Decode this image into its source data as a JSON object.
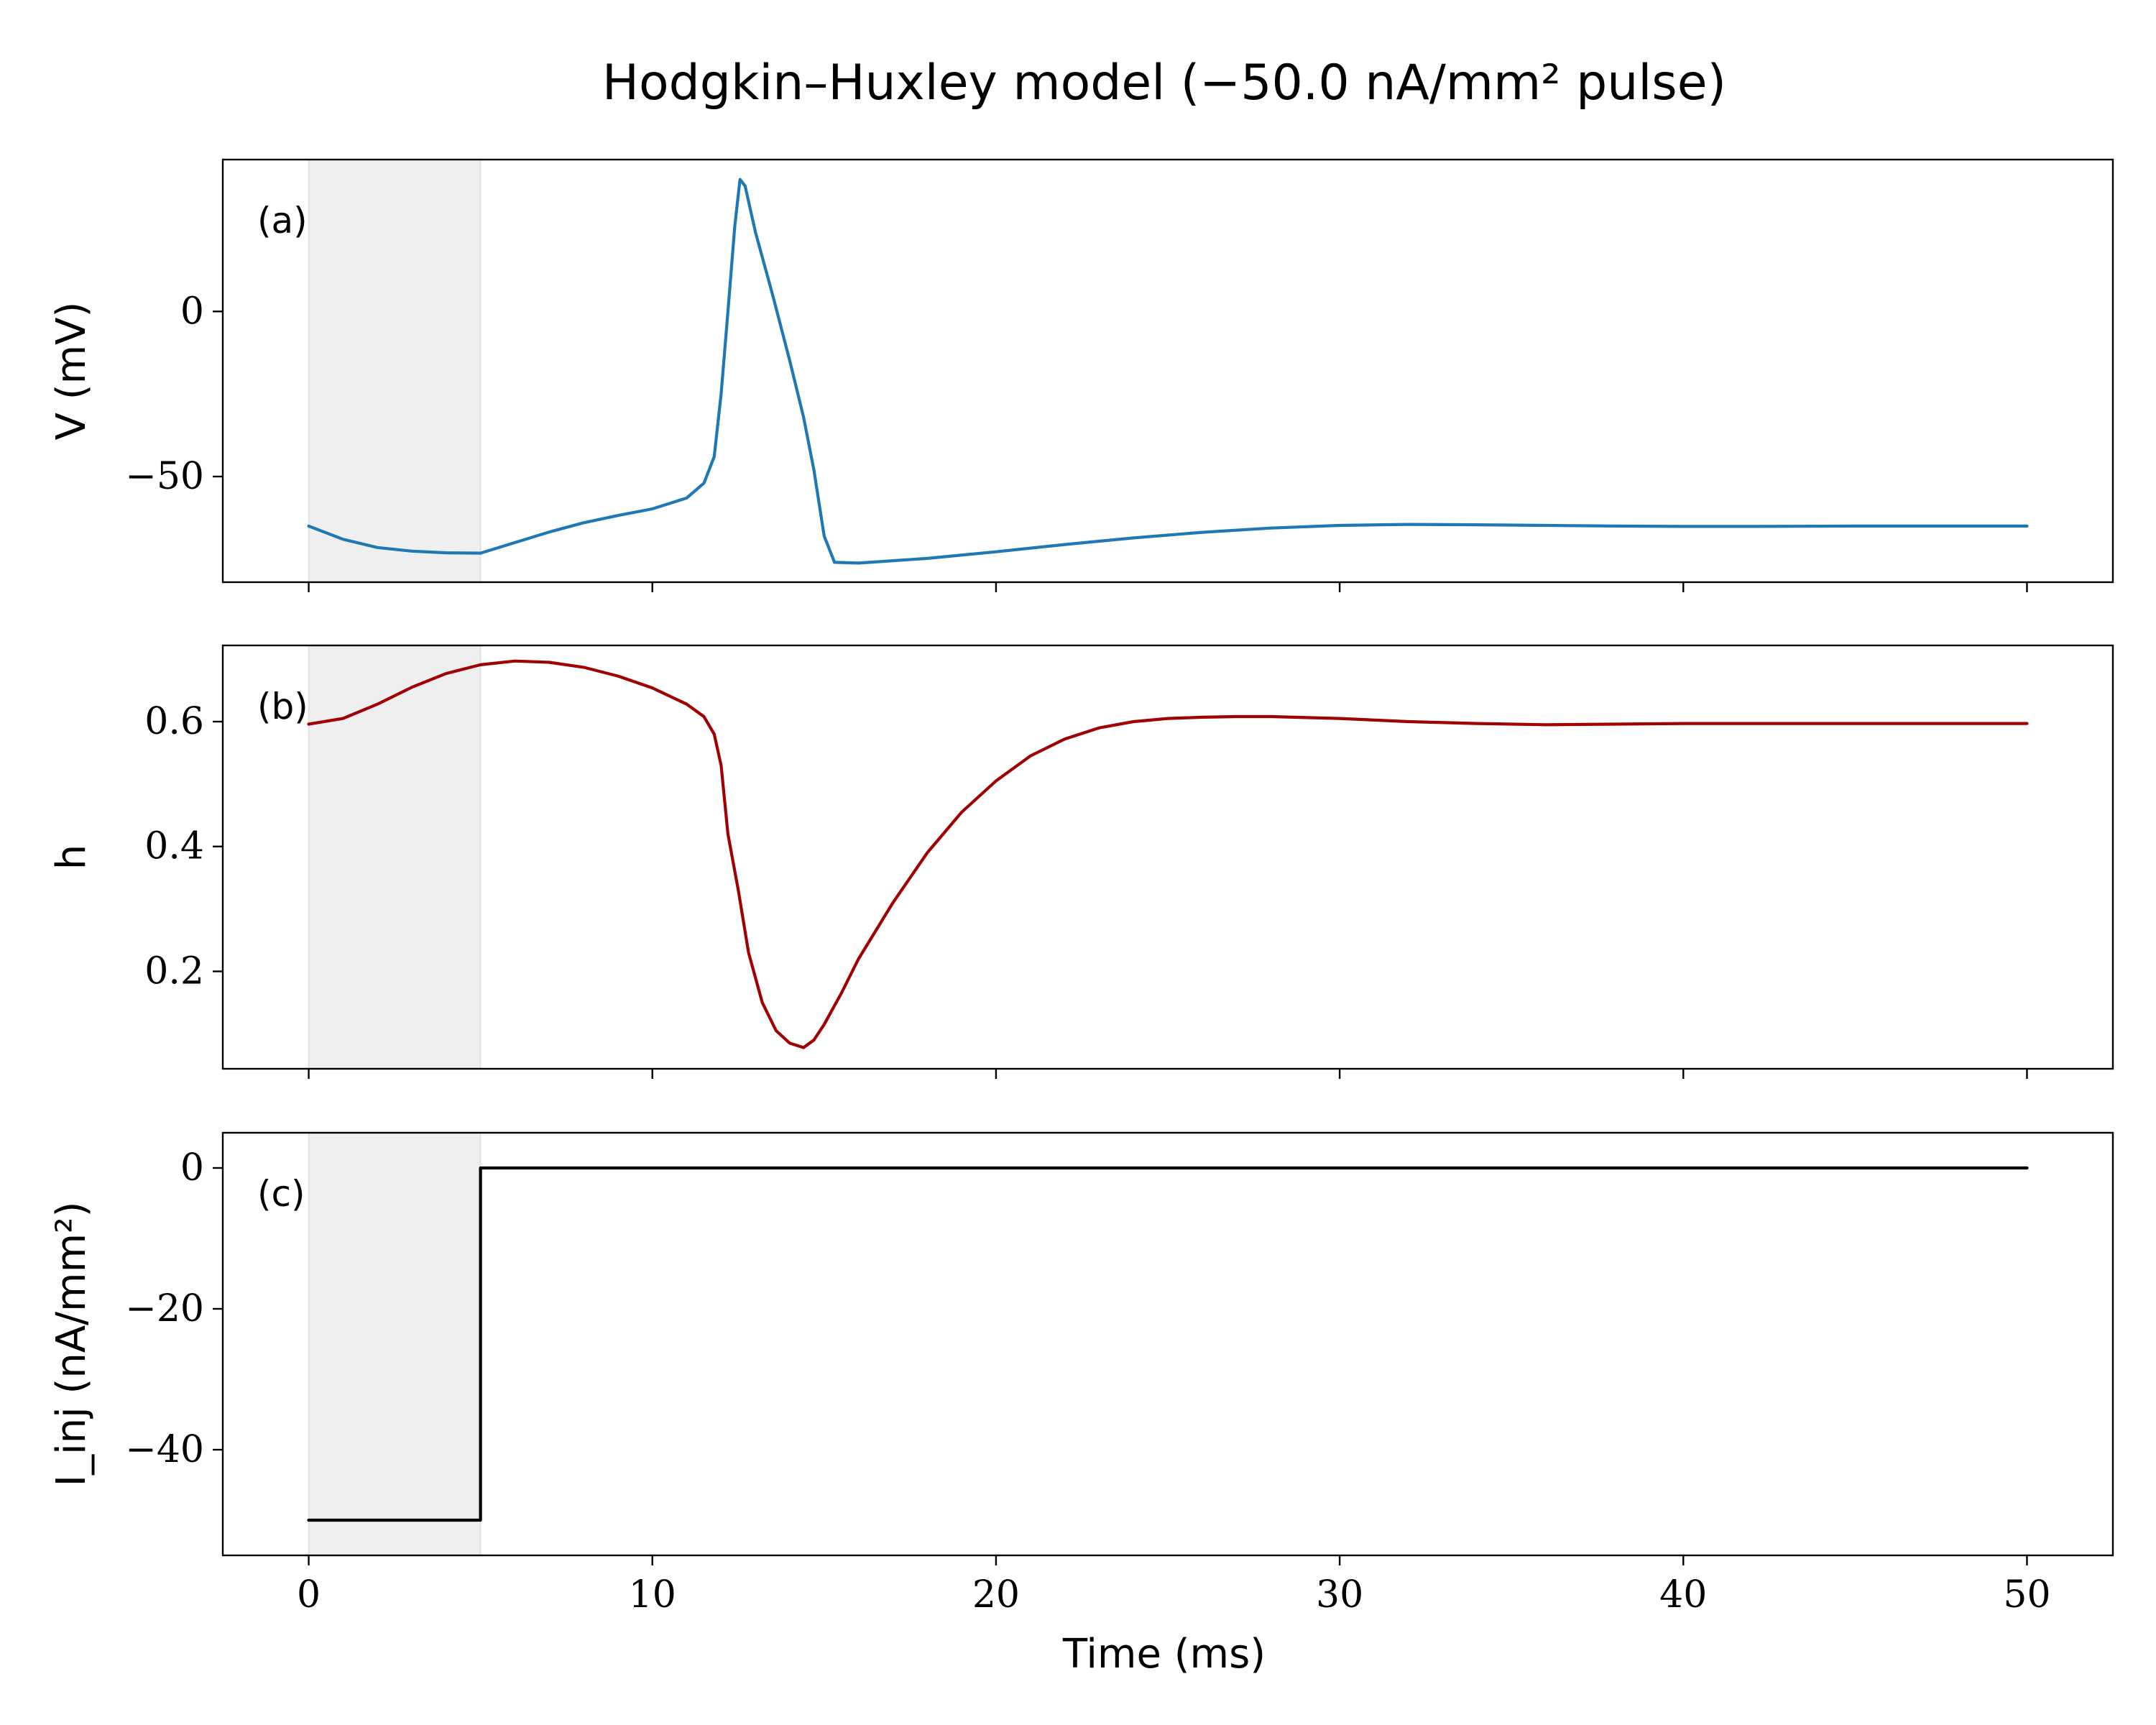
{
  "figure": {
    "title": "Hodgkin–Huxley model (−50.0 nA/mm² pulse)",
    "xlabel": "Time (ms)"
  },
  "chart_data": [
    {
      "type": "line",
      "panel_label": "(a)",
      "ylabel": "V (mV)",
      "xlim": [
        -2.5,
        52.5
      ],
      "ylim": [
        -82,
        46
      ],
      "xticks": [
        0,
        10,
        20,
        30,
        40,
        50
      ],
      "xticklabels": [
        "",
        "",
        "",
        "",
        "",
        ""
      ],
      "yticks": [
        0,
        -50
      ],
      "yticklabels": [
        "0",
        "−50"
      ],
      "shaded_interval": [
        0,
        5
      ],
      "color": "#1f77b4",
      "x": [
        0,
        1,
        2,
        3,
        4,
        5,
        6,
        7,
        8,
        9,
        10,
        11,
        11.5,
        11.8,
        12.0,
        12.2,
        12.4,
        12.55,
        12.7,
        13.0,
        13.5,
        14.0,
        14.4,
        14.7,
        15.0,
        15.3,
        16,
        17,
        18,
        20,
        22,
        24,
        26,
        28,
        30,
        32,
        34,
        36,
        38,
        40,
        42,
        45,
        50
      ],
      "y": [
        -65.0,
        -69.0,
        -71.5,
        -72.6,
        -73.1,
        -73.2,
        -70.0,
        -66.8,
        -64.0,
        -61.8,
        -59.8,
        -56.5,
        -52.0,
        -44.0,
        -25.0,
        0.0,
        26.0,
        40.0,
        38.0,
        24.0,
        5.0,
        -15.0,
        -32.0,
        -48.0,
        -68.0,
        -76.0,
        -76.2,
        -75.5,
        -74.8,
        -72.8,
        -70.6,
        -68.6,
        -66.9,
        -65.6,
        -64.8,
        -64.5,
        -64.6,
        -64.8,
        -65.0,
        -65.1,
        -65.1,
        -65.0,
        -65.0
      ]
    },
    {
      "type": "line",
      "panel_label": "(b)",
      "ylabel": "h",
      "xlim": [
        -2.5,
        52.5
      ],
      "ylim": [
        0.044,
        0.722
      ],
      "xticks": [
        0,
        10,
        20,
        30,
        40,
        50
      ],
      "xticklabels": [
        "",
        "",
        "",
        "",
        "",
        ""
      ],
      "yticks": [
        0.6,
        0.4,
        0.2
      ],
      "yticklabels": [
        "0.6",
        "0.4",
        "0.2"
      ],
      "shaded_interval": [
        0,
        5
      ],
      "color": "#a00000",
      "x": [
        0,
        1,
        2,
        3,
        4,
        5,
        6,
        7,
        8,
        9,
        10,
        11,
        11.5,
        11.8,
        12.0,
        12.2,
        12.5,
        12.8,
        13.2,
        13.6,
        14.0,
        14.4,
        14.7,
        15.0,
        15.5,
        16,
        17,
        18,
        19,
        20,
        21,
        22,
        23,
        24,
        25,
        26,
        27,
        28,
        30,
        32,
        34,
        36,
        38,
        40,
        45,
        50
      ],
      "y": [
        0.596,
        0.605,
        0.628,
        0.655,
        0.677,
        0.691,
        0.697,
        0.695,
        0.687,
        0.673,
        0.654,
        0.628,
        0.608,
        0.58,
        0.53,
        0.42,
        0.33,
        0.23,
        0.15,
        0.105,
        0.085,
        0.078,
        0.09,
        0.115,
        0.165,
        0.22,
        0.31,
        0.39,
        0.455,
        0.505,
        0.545,
        0.572,
        0.59,
        0.6,
        0.605,
        0.607,
        0.608,
        0.608,
        0.605,
        0.6,
        0.597,
        0.595,
        0.596,
        0.597,
        0.597,
        0.597
      ]
    },
    {
      "type": "line",
      "panel_label": "(c)",
      "ylabel": "I_inj (nA/mm²)",
      "xlim": [
        -2.5,
        52.5
      ],
      "ylim": [
        -55,
        5
      ],
      "xticks": [
        0,
        10,
        20,
        30,
        40,
        50
      ],
      "xticklabels": [
        "0",
        "10",
        "20",
        "30",
        "40",
        "50"
      ],
      "yticks": [
        0,
        -20,
        -40
      ],
      "yticklabels": [
        "0",
        "−20",
        "−40"
      ],
      "shaded_interval": [
        0,
        5
      ],
      "color": "#000000",
      "x": [
        0,
        5,
        5,
        50
      ],
      "y": [
        -50,
        -50,
        0,
        0
      ]
    }
  ]
}
